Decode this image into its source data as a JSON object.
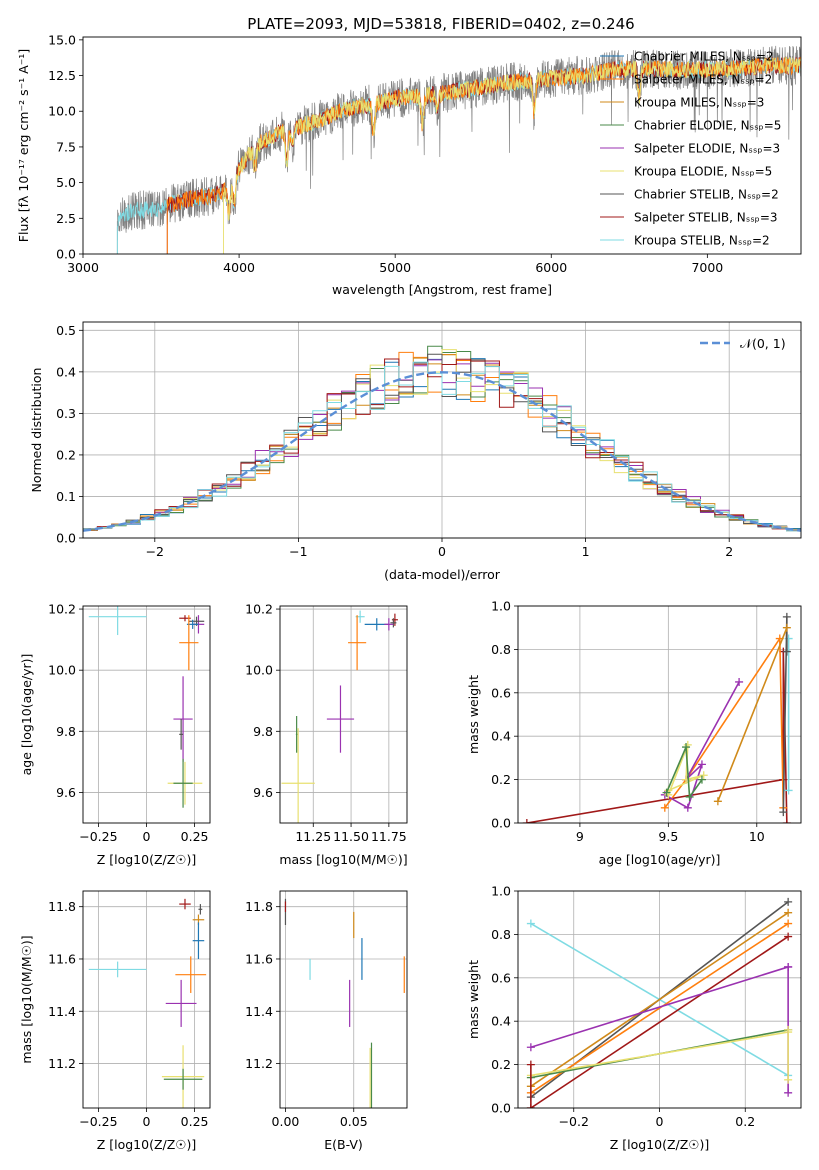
{
  "figure_title": "PLATE=2093, MJD=53818, FIBERID=0402, z=0.246",
  "series_colors": {
    "chabrier_miles": "#1f77b4",
    "salpeter_miles": "#ff7f0e",
    "kroupa_miles": "#d08a1a",
    "chabrier_elodie": "#4a8a4a",
    "salpeter_elodie": "#9a32b0",
    "kroupa_elodie": "#e8e070",
    "chabrier_stelib": "#555555",
    "salpeter_stelib": "#a01818",
    "kroupa_stelib": "#7fdbe3",
    "normal_curve": "#5b8fd6",
    "data_spectrum": "#808080"
  },
  "chart_data": [
    {
      "id": "spectrum",
      "type": "line",
      "title": "PLATE=2093, MJD=53818, FIBERID=0402, z=0.246",
      "xlabel": "wavelength [Angstrom, rest frame]",
      "ylabel": "Flux [fλ 10⁻¹⁷ erg cm⁻² s⁻¹ A⁻¹]",
      "xlim": [
        3000,
        7600
      ],
      "ylim": [
        0,
        15.2
      ],
      "xticks": [
        3000,
        4000,
        5000,
        6000,
        7000
      ],
      "yticks": [
        0.0,
        2.5,
        5.0,
        7.5,
        10.0,
        12.5,
        15.0
      ],
      "grid": false,
      "legend_position": "right",
      "legend": [
        "Chabrier MILES, N_SSP=2",
        "Salpeter MILES, N_SSP=2",
        "Kroupa MILES, N_SSP=3",
        "Chabrier ELODIE, N_SSP=5",
        "Salpeter ELODIE, N_SSP=3",
        "Kroupa ELODIE, N_SSP=5",
        "Chabrier STELIB, N_SSP=2",
        "Salpeter STELIB, N_SSP=3",
        "Kroupa STELIB, N_SSP=2"
      ],
      "continuum": {
        "x": [
          3220,
          3300,
          3400,
          3500,
          3600,
          3700,
          3800,
          3900,
          3950,
          4000,
          4100,
          4200,
          4300,
          4400,
          4500,
          4600,
          4700,
          4800,
          4900,
          5000,
          5200,
          5400,
          5600,
          5800,
          6000,
          6200,
          6400,
          6600,
          6800,
          7000,
          7200,
          7400
        ],
        "y": [
          2.3,
          3.0,
          3.1,
          3.2,
          3.6,
          3.9,
          4.0,
          4.4,
          4.6,
          6.0,
          7.5,
          8.2,
          8.7,
          9.0,
          9.3,
          9.8,
          10.2,
          10.4,
          10.6,
          10.9,
          11.1,
          11.4,
          11.8,
          12.1,
          12.3,
          12.5,
          12.9,
          13.0,
          12.9,
          12.9,
          13.0,
          13.2
        ]
      },
      "model_starts": [
        3220,
        3540,
        3900
      ]
    },
    {
      "id": "residuals",
      "type": "bar",
      "xlabel": "(data-model)/error",
      "ylabel": "Normed distribution",
      "xlim": [
        -2.5,
        2.5
      ],
      "ylim": [
        0,
        0.52
      ],
      "xticks": [
        -2,
        -1,
        0,
        1,
        2
      ],
      "yticks": [
        0.0,
        0.1,
        0.2,
        0.3,
        0.4,
        0.5
      ],
      "grid": true,
      "legend_position": "top-right",
      "legend": [
        "𝒩(0, 1)"
      ],
      "bin_width": 0.1,
      "normal_mean": 0,
      "normal_sigma": 1
    },
    {
      "id": "age_vs_Z",
      "type": "scatter",
      "xlabel": "Z [log10(Z/Z☉)]",
      "ylabel": "age  [log10(age/yr)]",
      "xlim": [
        -0.33,
        0.33
      ],
      "ylim": [
        9.5,
        10.21
      ],
      "xticks": [
        -0.25,
        0.0,
        0.25
      ],
      "yticks": [
        9.6,
        9.8,
        10.0,
        10.2
      ],
      "grid": true,
      "points": [
        {
          "x": -0.15,
          "y": 10.175,
          "xerr": 0.15,
          "yerr": 0.06,
          "c": "kroupa_stelib"
        },
        {
          "x": 0.2,
          "y": 10.17,
          "xerr": 0.03,
          "yerr": 0.01,
          "c": "salpeter_stelib"
        },
        {
          "x": 0.27,
          "y": 10.15,
          "xerr": 0.03,
          "yerr": 0.03,
          "c": "salpeter_elodie"
        },
        {
          "x": 0.26,
          "y": 10.16,
          "xerr": 0.04,
          "yerr": 0.015,
          "c": "chabrier_stelib"
        },
        {
          "x": 0.24,
          "y": 10.15,
          "xerr": 0.03,
          "yerr": 0.015,
          "c": "chabrier_miles"
        },
        {
          "x": 0.22,
          "y": 10.09,
          "xerr": 0.05,
          "yerr": 0.09,
          "c": "salpeter_miles"
        },
        {
          "x": 0.19,
          "y": 9.84,
          "xerr": 0.05,
          "yerr": 0.14,
          "c": "salpeter_elodie"
        },
        {
          "x": 0.18,
          "y": 9.79,
          "xerr": 0.01,
          "yerr": 0.05,
          "c": "chabrier_stelib"
        },
        {
          "x": 0.2,
          "y": 9.63,
          "xerr": 0.09,
          "yerr": 0.07,
          "c": "kroupa_elodie"
        },
        {
          "x": 0.19,
          "y": 9.63,
          "xerr": 0.05,
          "yerr": 0.08,
          "c": "chabrier_elodie"
        }
      ]
    },
    {
      "id": "age_vs_mass",
      "type": "scatter",
      "xlabel": "mass [log10(M/M☉)]",
      "ylabel": "",
      "xlim": [
        11.03,
        11.87
      ],
      "ylim": [
        9.5,
        10.21
      ],
      "xticks": [
        11.25,
        11.5,
        11.75
      ],
      "xtick_labels": [
        "11.25",
        "11.50",
        "11.75"
      ],
      "yticks": [
        9.6,
        9.8,
        10.0,
        10.2
      ],
      "grid": true,
      "points": [
        {
          "x": 11.56,
          "y": 10.175,
          "xerr": 0.03,
          "yerr": 0.02,
          "c": "kroupa_stelib"
        },
        {
          "x": 11.79,
          "y": 10.165,
          "xerr": 0.02,
          "yerr": 0.02,
          "c": "salpeter_stelib"
        },
        {
          "x": 11.78,
          "y": 10.155,
          "xerr": 0.02,
          "yerr": 0.015,
          "c": "chabrier_stelib"
        },
        {
          "x": 11.67,
          "y": 10.15,
          "xerr": 0.08,
          "yerr": 0.02,
          "c": "chabrier_miles"
        },
        {
          "x": 11.75,
          "y": 10.15,
          "xerr": 0.03,
          "yerr": 0.02,
          "c": "salpeter_elodie"
        },
        {
          "x": 11.54,
          "y": 10.09,
          "xerr": 0.06,
          "yerr": 0.09,
          "c": "salpeter_miles"
        },
        {
          "x": 11.43,
          "y": 9.84,
          "xerr": 0.09,
          "yerr": 0.11,
          "c": "salpeter_elodie"
        },
        {
          "x": 11.14,
          "y": 9.79,
          "xerr": 0.005,
          "yerr": 0.06,
          "c": "chabrier_elodie"
        },
        {
          "x": 11.15,
          "y": 9.63,
          "xerr": 0.11,
          "yerr": 0.18,
          "c": "kroupa_elodie"
        }
      ]
    },
    {
      "id": "weight_vs_age",
      "type": "line",
      "xlabel": "age  [log10(age/yr)]",
      "ylabel": "mass weight",
      "xlim": [
        8.65,
        10.25
      ],
      "ylim": [
        0,
        1
      ],
      "xticks": [
        9.0,
        9.5,
        10.0
      ],
      "yticks": [
        0.0,
        0.2,
        0.4,
        0.6,
        0.8,
        1.0
      ],
      "grid": true,
      "series": [
        {
          "c": "salpeter_stelib",
          "x": [
            8.7,
            10.15,
            10.15,
            10.17
          ],
          "y": [
            0.0,
            0.2,
            0.79,
            0.0
          ]
        },
        {
          "c": "kroupa_stelib",
          "x": [
            10.18,
            10.18
          ],
          "y": [
            0.15,
            0.85
          ]
        },
        {
          "c": "salpeter_miles",
          "x": [
            9.48,
            9.6,
            10.13,
            10.15
          ],
          "y": [
            0.07,
            0.2,
            0.85,
            0.07
          ]
        },
        {
          "c": "salpeter_elodie",
          "x": [
            9.48,
            9.61,
            9.69,
            9.6,
            9.9
          ],
          "y": [
            0.13,
            0.07,
            0.27,
            0.2,
            0.65
          ]
        },
        {
          "c": "kroupa_elodie",
          "x": [
            9.5,
            9.61,
            9.6,
            9.7,
            9.5
          ],
          "y": [
            0.13,
            0.36,
            0.2,
            0.22,
            0.15
          ]
        },
        {
          "c": "chabrier_elodie",
          "x": [
            9.49,
            9.6,
            9.62,
            9.69
          ],
          "y": [
            0.14,
            0.35,
            0.12,
            0.2
          ]
        },
        {
          "c": "chabrier_stelib",
          "x": [
            10.15,
            10.17,
            10.17
          ],
          "y": [
            0.05,
            0.95,
            0.79
          ]
        },
        {
          "c": "kroupa_miles",
          "x": [
            9.78,
            10.17
          ],
          "y": [
            0.1,
            0.9
          ]
        }
      ]
    },
    {
      "id": "mass_vs_Z",
      "type": "scatter",
      "xlabel": "Z [log10(Z/Z☉)]",
      "ylabel": "mass [log10(M/M☉)]",
      "xlim": [
        -0.33,
        0.33
      ],
      "ylim": [
        11.03,
        11.86
      ],
      "xticks": [
        -0.25,
        0.0,
        0.25
      ],
      "yticks": [
        11.2,
        11.4,
        11.6,
        11.8
      ],
      "grid": true,
      "points": [
        {
          "x": -0.15,
          "y": 11.56,
          "xerr": 0.15,
          "yerr": 0.03,
          "c": "kroupa_stelib"
        },
        {
          "x": 0.2,
          "y": 11.81,
          "xerr": 0.03,
          "yerr": 0.02,
          "c": "salpeter_stelib"
        },
        {
          "x": 0.28,
          "y": 11.79,
          "xerr": 0.01,
          "yerr": 0.02,
          "c": "chabrier_stelib"
        },
        {
          "x": 0.27,
          "y": 11.75,
          "xerr": 0.03,
          "yerr": 0.02,
          "c": "kroupa_miles"
        },
        {
          "x": 0.27,
          "y": 11.67,
          "xerr": 0.03,
          "yerr": 0.07,
          "c": "chabrier_miles"
        },
        {
          "x": 0.23,
          "y": 11.54,
          "xerr": 0.08,
          "yerr": 0.07,
          "c": "salpeter_miles"
        },
        {
          "x": 0.18,
          "y": 11.43,
          "xerr": 0.08,
          "yerr": 0.09,
          "c": "salpeter_elodie"
        },
        {
          "x": 0.19,
          "y": 11.15,
          "xerr": 0.11,
          "yerr": 0.12,
          "c": "kroupa_elodie"
        },
        {
          "x": 0.19,
          "y": 11.14,
          "xerr": 0.1,
          "yerr": 0.04,
          "c": "chabrier_elodie"
        }
      ]
    },
    {
      "id": "mass_vs_EBV",
      "type": "scatter",
      "xlabel": "E(B-V)",
      "ylabel": "",
      "xlim": [
        -0.004,
        0.089
      ],
      "ylim": [
        11.03,
        11.86
      ],
      "xticks": [
        0.0,
        0.05
      ],
      "xtick_labels": [
        "0.00",
        "0.05"
      ],
      "yticks": [
        11.2,
        11.4,
        11.6,
        11.8
      ],
      "grid": true,
      "points": [
        {
          "x": 0.0,
          "y": 11.78,
          "xerr": 0.0,
          "yerr": 0.05,
          "c": "chabrier_stelib"
        },
        {
          "x": 0.0,
          "y": 11.8,
          "xerr": 0.0,
          "yerr": 0.02,
          "c": "salpeter_stelib"
        },
        {
          "x": 0.018,
          "y": 11.56,
          "xerr": 0.0,
          "yerr": 0.04,
          "c": "kroupa_stelib"
        },
        {
          "x": 0.05,
          "y": 11.73,
          "xerr": 0.0,
          "yerr": 0.05,
          "c": "kroupa_miles"
        },
        {
          "x": 0.056,
          "y": 11.6,
          "xerr": 0.0,
          "yerr": 0.08,
          "c": "chabrier_miles"
        },
        {
          "x": 0.047,
          "y": 11.43,
          "xerr": 0.0,
          "yerr": 0.09,
          "c": "salpeter_elodie"
        },
        {
          "x": 0.062,
          "y": 11.14,
          "xerr": 0.0,
          "yerr": 0.12,
          "c": "kroupa_elodie"
        },
        {
          "x": 0.063,
          "y": 11.15,
          "xerr": 0.0,
          "yerr": 0.13,
          "c": "chabrier_elodie"
        },
        {
          "x": 0.087,
          "y": 11.54,
          "xerr": 0.0,
          "yerr": 0.07,
          "c": "salpeter_miles"
        }
      ]
    },
    {
      "id": "weight_vs_Z",
      "type": "line",
      "xlabel": "Z [log10(Z/Z☉)]",
      "ylabel": "mass weight",
      "xlim": [
        -0.33,
        0.33
      ],
      "ylim": [
        0,
        1
      ],
      "xticks": [
        -0.2,
        0.0,
        0.2
      ],
      "yticks": [
        0.0,
        0.2,
        0.4,
        0.6,
        0.8,
        1.0
      ],
      "grid": true,
      "series": [
        {
          "c": "kroupa_stelib",
          "x": [
            -0.3,
            0.3
          ],
          "y": [
            0.85,
            0.15
          ]
        },
        {
          "c": "chabrier_stelib",
          "x": [
            -0.3,
            0.3
          ],
          "y": [
            0.05,
            0.95
          ]
        },
        {
          "c": "salpeter_miles",
          "x": [
            -0.3,
            0.3
          ],
          "y": [
            0.07,
            0.85
          ]
        },
        {
          "c": "kroupa_miles",
          "x": [
            -0.3,
            0.3
          ],
          "y": [
            0.1,
            0.9
          ]
        },
        {
          "c": "salpeter_stelib",
          "x": [
            -0.3,
            0.3
          ],
          "y": [
            0.0,
            0.79
          ]
        },
        {
          "c": "salpeter_elodie",
          "x": [
            -0.3,
            0.3
          ],
          "y": [
            0.28,
            0.65
          ]
        },
        {
          "c": "chabrier_elodie",
          "x": [
            -0.3,
            0.3
          ],
          "y": [
            0.14,
            0.36
          ]
        },
        {
          "c": "kroupa_elodie",
          "x": [
            -0.3,
            0.3
          ],
          "y": [
            0.15,
            0.35
          ]
        },
        {
          "c": "salpeter_stelib",
          "x": [
            -0.3,
            -0.3
          ],
          "y": [
            0.0,
            0.2
          ]
        },
        {
          "c": "salpeter_elodie",
          "x": [
            0.3,
            0.3
          ],
          "y": [
            0.07,
            0.65
          ]
        },
        {
          "c": "kroupa_elodie",
          "x": [
            0.3,
            0.3
          ],
          "y": [
            0.13,
            0.36
          ]
        }
      ]
    }
  ]
}
